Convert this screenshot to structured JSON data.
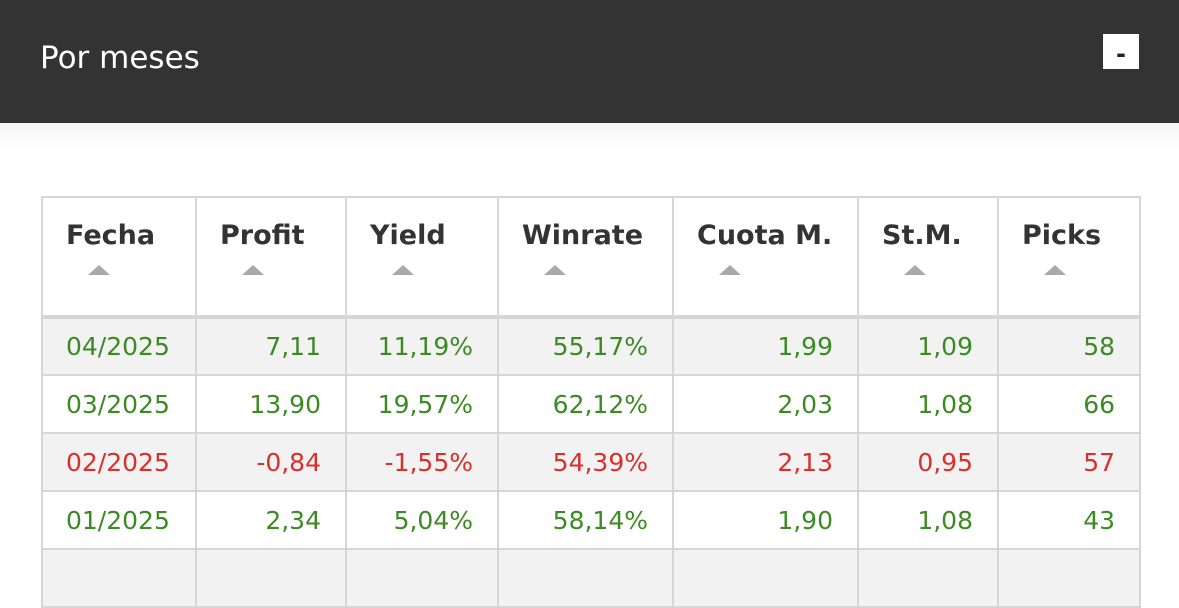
{
  "header": {
    "title": "Por meses",
    "collapse_label": "-"
  },
  "table": {
    "columns": [
      "Fecha",
      "Profit",
      "Yield",
      "Winrate",
      "Cuota M.",
      "St.M.",
      "Picks"
    ],
    "rows": [
      {
        "fecha": "04/2025",
        "profit": "7,11",
        "yield": "11,19%",
        "winrate": "55,17%",
        "cuota": "1,99",
        "stm": "1,09",
        "picks": "58",
        "trend": "positive"
      },
      {
        "fecha": "03/2025",
        "profit": "13,90",
        "yield": "19,57%",
        "winrate": "62,12%",
        "cuota": "2,03",
        "stm": "1,08",
        "picks": "66",
        "trend": "positive"
      },
      {
        "fecha": "02/2025",
        "profit": "-0,84",
        "yield": "-1,55%",
        "winrate": "54,39%",
        "cuota": "2,13",
        "stm": "0,95",
        "picks": "57",
        "trend": "negative"
      },
      {
        "fecha": "01/2025",
        "profit": "2,34",
        "yield": "5,04%",
        "winrate": "58,14%",
        "cuota": "1,90",
        "stm": "1,08",
        "picks": "43",
        "trend": "positive"
      }
    ]
  },
  "colors": {
    "header_bg": "#333333",
    "positive": "#3c8a23",
    "negative": "#d8302c",
    "row_alt": "#f2f2f2",
    "border": "#d6d6d6"
  },
  "icons": {
    "sort": "sort-up-icon"
  }
}
